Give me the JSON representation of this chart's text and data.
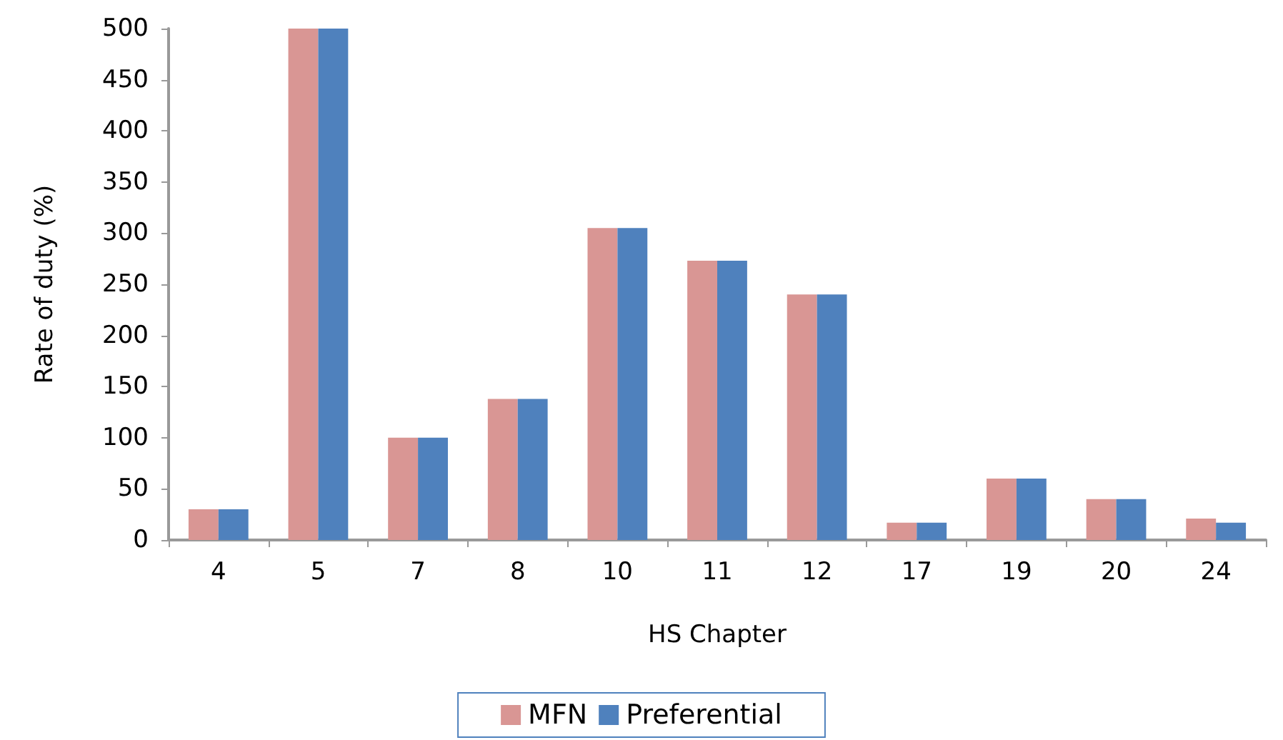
{
  "chart_data": {
    "type": "bar",
    "xlabel": "HS Chapter",
    "ylabel": "Rate of duty (%)",
    "categories": [
      "4",
      "5",
      "7",
      "8",
      "10",
      "11",
      "12",
      "17",
      "19",
      "20",
      "24"
    ],
    "series": [
      {
        "name": "MFN",
        "color": "#d99694",
        "values": [
          30,
          500,
          100,
          138,
          305,
          273,
          240,
          17,
          60,
          40,
          21
        ]
      },
      {
        "name": "Preferential",
        "color": "#4f81bd",
        "values": [
          30,
          500,
          100,
          138,
          305,
          273,
          240,
          17,
          60,
          40,
          17
        ]
      }
    ],
    "ylim": [
      0,
      500
    ],
    "yticks": [
      0,
      50,
      100,
      150,
      200,
      250,
      300,
      350,
      400,
      450,
      500
    ],
    "grid": false,
    "legend": "bottom"
  }
}
